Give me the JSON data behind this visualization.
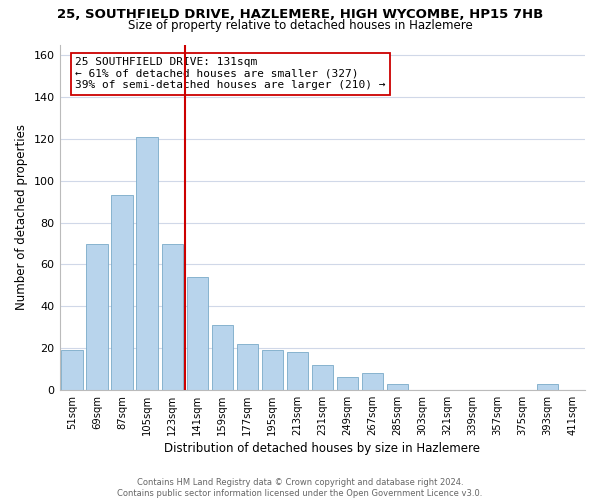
{
  "title_line1": "25, SOUTHFIELD DRIVE, HAZLEMERE, HIGH WYCOMBE, HP15 7HB",
  "title_line2": "Size of property relative to detached houses in Hazlemere",
  "xlabel": "Distribution of detached houses by size in Hazlemere",
  "ylabel": "Number of detached properties",
  "bar_color": "#b8d4ec",
  "bar_edge_color": "#7aaac8",
  "categories": [
    "51sqm",
    "69sqm",
    "87sqm",
    "105sqm",
    "123sqm",
    "141sqm",
    "159sqm",
    "177sqm",
    "195sqm",
    "213sqm",
    "231sqm",
    "249sqm",
    "267sqm",
    "285sqm",
    "303sqm",
    "321sqm",
    "339sqm",
    "357sqm",
    "375sqm",
    "393sqm",
    "411sqm"
  ],
  "values": [
    19,
    70,
    93,
    121,
    70,
    54,
    31,
    22,
    19,
    18,
    12,
    6,
    8,
    3,
    0,
    0,
    0,
    0,
    0,
    3,
    0
  ],
  "vline_color": "#cc0000",
  "ylim": [
    0,
    165
  ],
  "yticks": [
    0,
    20,
    40,
    60,
    80,
    100,
    120,
    140,
    160
  ],
  "annotation_text": "25 SOUTHFIELD DRIVE: 131sqm\n← 61% of detached houses are smaller (327)\n39% of semi-detached houses are larger (210) →",
  "annotation_box_color": "#ffffff",
  "annotation_box_edge": "#cc0000",
  "footer_line1": "Contains HM Land Registry data © Crown copyright and database right 2024.",
  "footer_line2": "Contains public sector information licensed under the Open Government Licence v3.0.",
  "bg_color": "#ffffff",
  "grid_color": "#d0d8e8"
}
